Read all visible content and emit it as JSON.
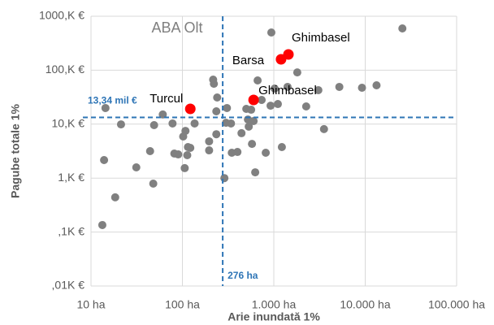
{
  "chart_data": {
    "type": "scatter",
    "annotation": "ABA Olt",
    "x_label": "Arie inundată 1%",
    "y_label": "Pagube totale 1%",
    "log_x": true,
    "log_y": true,
    "grid": true,
    "xlim": [
      10,
      100000
    ],
    "ylim": [
      0.01,
      1000
    ],
    "xticks": [
      {
        "value": 10,
        "label": "10 ha"
      },
      {
        "value": 100,
        "label": "100 ha"
      },
      {
        "value": 1000,
        "label": "1.000 ha"
      },
      {
        "value": 10000,
        "label": "10.000 ha"
      },
      {
        "value": 100000,
        "label": "100.000 ha"
      }
    ],
    "yticks": [
      {
        "value": 0.01,
        "label": ",01K €"
      },
      {
        "value": 0.1,
        "label": ",1K €"
      },
      {
        "value": 1,
        "label": "1,K €"
      },
      {
        "value": 10,
        "label": "10,K €"
      },
      {
        "value": 100,
        "label": "100,K €"
      },
      {
        "value": 1000,
        "label": "1000,K €"
      }
    ],
    "reference_x": {
      "value": 276,
      "label": "276 ha"
    },
    "reference_y": {
      "value": 13.34,
      "label": "13,34 mil €"
    },
    "points": {
      "color": "#808080",
      "x": [
        14.4,
        13.9,
        13.3,
        18.4,
        21.3,
        31.3,
        44.3,
        48,
        49,
        61,
        81.6,
        78,
        90,
        102,
        115,
        106,
        113,
        108,
        122,
        136,
        196,
        217,
        221,
        240,
        235,
        235,
        196,
        300,
        347,
        400,
        340,
        307,
        288,
        443,
        521,
        532,
        565,
        626,
        500,
        601,
        665,
        736,
        577,
        816,
        940,
        922,
        1021,
        1107,
        1225,
        1413,
        1806,
        2260,
        3070,
        5210,
        3540,
        9220,
        13300,
        25500
      ],
      "values": [
        19.9,
        2.16,
        0.135,
        0.44,
        9.9,
        1.58,
        3.16,
        0.79,
        9.6,
        15.1,
        2.85,
        10.3,
        2.75,
        5.9,
        3.76,
        1.53,
        2.66,
        7.5,
        3.63,
        10.3,
        4.8,
        66.8,
        56,
        31.2,
        17.3,
        6.5,
        3.27,
        10.6,
        2.95,
        3.05,
        10.3,
        19.9,
        1.0,
        6.8,
        12.2,
        9.0,
        18.5,
        1.28,
        19.2,
        11.4,
        64.6,
        28.1,
        4.3,
        2.95,
        500,
        22,
        45.7,
        23.6,
        3.76,
        49,
        91,
        21.3,
        42.7,
        49,
        8.1,
        47.3,
        52.5,
        594
      ]
    },
    "highlighted": {
      "color": "#ff0000",
      "labels": [
        "Turcul",
        "Ghimbasel",
        "Barsa",
        "Ghimbasel"
      ],
      "x": [
        122,
        601,
        1200,
        1445
      ],
      "values": [
        19.2,
        28.1,
        159,
        196
      ]
    }
  }
}
